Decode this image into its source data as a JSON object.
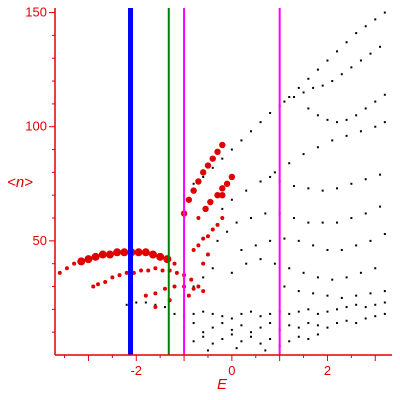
{
  "chart_data": {
    "type": "scatter",
    "title": "",
    "xlabel": "E",
    "ylabel": "<n>",
    "xlim": [
      -3.7,
      3.35
    ],
    "ylim": [
      0,
      152
    ],
    "x_ticks": [
      -2,
      0,
      2
    ],
    "x_tick_labels": [
      "-2",
      "0",
      "2"
    ],
    "y_ticks": [
      50,
      100,
      150
    ],
    "y_tick_labels": [
      "50",
      "100",
      "150"
    ],
    "grid": false,
    "legend": "none",
    "colors": {
      "axis": "#e00000",
      "highlight": "#e00000",
      "background_points": "#000000"
    },
    "vertical_lines": [
      {
        "x": -2.12,
        "color": "#0000ff",
        "weight": "thick"
      },
      {
        "x": -1.32,
        "color": "#008000",
        "weight": "thin"
      },
      {
        "x": -1.0,
        "color": "#ff00ff",
        "weight": "thin"
      },
      {
        "x": 1.0,
        "color": "#ff00ff",
        "weight": "thin"
      }
    ],
    "series": [
      {
        "color": "#000000",
        "points": [
          [
            -1.0,
            70
          ],
          [
            -0.8,
            75
          ],
          [
            -0.6,
            78
          ],
          [
            -0.4,
            82
          ],
          [
            -0.2,
            86
          ],
          [
            0.0,
            90
          ],
          [
            0.2,
            94
          ],
          [
            0.4,
            98
          ],
          [
            0.6,
            102
          ],
          [
            0.8,
            106
          ],
          [
            1.0,
            109
          ],
          [
            1.2,
            113
          ],
          [
            1.4,
            117
          ],
          [
            1.6,
            121
          ],
          [
            1.8,
            125
          ],
          [
            2.0,
            129
          ],
          [
            2.2,
            133
          ],
          [
            2.4,
            137
          ],
          [
            2.6,
            141
          ],
          [
            2.8,
            144
          ],
          [
            3.0,
            147
          ],
          [
            3.2,
            150
          ],
          [
            1.1,
            111
          ],
          [
            1.3,
            113
          ],
          [
            1.5,
            115
          ],
          [
            1.7,
            117
          ],
          [
            1.9,
            118
          ],
          [
            2.1,
            120
          ],
          [
            2.3,
            123
          ],
          [
            2.5,
            126
          ],
          [
            2.7,
            129
          ],
          [
            2.9,
            132
          ],
          [
            3.1,
            135
          ],
          [
            1.6,
            108
          ],
          [
            1.8,
            105
          ],
          [
            2.0,
            103
          ],
          [
            2.2,
            102
          ],
          [
            2.4,
            103
          ],
          [
            2.6,
            105
          ],
          [
            2.8,
            108
          ],
          [
            3.0,
            111
          ],
          [
            3.2,
            114
          ],
          [
            -0.2,
            64
          ],
          [
            0.0,
            68
          ],
          [
            0.3,
            72
          ],
          [
            0.6,
            76
          ],
          [
            0.9,
            80
          ],
          [
            1.2,
            84
          ],
          [
            1.5,
            88
          ],
          [
            1.8,
            91
          ],
          [
            2.1,
            94
          ],
          [
            2.4,
            96
          ],
          [
            2.7,
            98
          ],
          [
            3.0,
            100
          ],
          [
            3.2,
            102
          ],
          [
            0.8,
            78
          ],
          [
            1.0,
            76
          ],
          [
            1.3,
            74
          ],
          [
            1.6,
            73
          ],
          [
            1.9,
            72
          ],
          [
            2.2,
            73
          ],
          [
            2.5,
            75
          ],
          [
            2.8,
            77
          ],
          [
            3.1,
            79
          ],
          [
            0.4,
            60
          ],
          [
            0.7,
            62
          ],
          [
            1.0,
            62
          ],
          [
            1.3,
            60
          ],
          [
            1.6,
            58
          ],
          [
            1.9,
            58
          ],
          [
            2.2,
            58
          ],
          [
            2.5,
            60
          ],
          [
            2.8,
            62
          ],
          [
            3.1,
            65
          ],
          [
            0.2,
            46
          ],
          [
            0.5,
            48
          ],
          [
            0.8,
            50
          ],
          [
            1.1,
            51
          ],
          [
            1.4,
            50
          ],
          [
            1.7,
            48
          ],
          [
            2.0,
            46
          ],
          [
            2.3,
            46
          ],
          [
            2.6,
            48
          ],
          [
            2.9,
            50
          ],
          [
            3.2,
            53
          ],
          [
            -0.3,
            50
          ],
          [
            -0.1,
            54
          ],
          [
            0.1,
            58
          ],
          [
            0.0,
            36
          ],
          [
            0.3,
            40
          ],
          [
            0.6,
            42
          ],
          [
            0.9,
            40
          ],
          [
            1.2,
            38
          ],
          [
            1.5,
            36
          ],
          [
            1.8,
            34
          ],
          [
            2.1,
            33
          ],
          [
            2.4,
            34
          ],
          [
            2.7,
            36
          ],
          [
            3.0,
            38
          ],
          [
            -0.4,
            38
          ],
          [
            -0.6,
            34
          ],
          [
            -0.8,
            30
          ],
          [
            1.1,
            30
          ],
          [
            1.4,
            28
          ],
          [
            1.7,
            27
          ],
          [
            2.0,
            26
          ],
          [
            2.3,
            25
          ],
          [
            2.6,
            26
          ],
          [
            2.9,
            27
          ],
          [
            3.2,
            28
          ],
          [
            -2.2,
            22
          ],
          [
            -2.0,
            23
          ],
          [
            -1.8,
            23
          ],
          [
            -1.6,
            22
          ],
          [
            -1.4,
            21
          ],
          [
            -1.2,
            18
          ],
          [
            -1.0,
            17
          ],
          [
            -0.8,
            18
          ],
          [
            -0.6,
            19
          ],
          [
            -0.4,
            18
          ],
          [
            -0.2,
            17
          ],
          [
            0.0,
            16
          ],
          [
            0.2,
            18
          ],
          [
            0.4,
            19
          ],
          [
            0.6,
            17
          ],
          [
            0.8,
            18
          ],
          [
            1.0,
            19
          ],
          [
            1.2,
            18
          ],
          [
            1.4,
            19
          ],
          [
            1.6,
            20
          ],
          [
            1.8,
            18
          ],
          [
            2.0,
            19
          ],
          [
            2.2,
            20
          ],
          [
            2.4,
            21
          ],
          [
            2.6,
            22
          ],
          [
            2.8,
            21
          ],
          [
            3.0,
            22
          ],
          [
            3.2,
            23
          ],
          [
            -1.0,
            12
          ],
          [
            -0.8,
            14
          ],
          [
            -0.6,
            10
          ],
          [
            -0.4,
            12
          ],
          [
            -0.2,
            14
          ],
          [
            0.0,
            11
          ],
          [
            0.2,
            13
          ],
          [
            0.4,
            10
          ],
          [
            0.6,
            12
          ],
          [
            0.8,
            14
          ],
          [
            1.0,
            11
          ],
          [
            1.2,
            13
          ],
          [
            1.4,
            12
          ],
          [
            1.6,
            14
          ],
          [
            1.8,
            13
          ],
          [
            2.0,
            12
          ],
          [
            2.2,
            14
          ],
          [
            2.4,
            15
          ],
          [
            2.6,
            14
          ],
          [
            2.8,
            16
          ],
          [
            3.0,
            17
          ],
          [
            3.2,
            18
          ],
          [
            -0.8,
            6
          ],
          [
            -0.6,
            8
          ],
          [
            -0.4,
            5
          ],
          [
            -0.2,
            7
          ],
          [
            0.0,
            9
          ],
          [
            0.2,
            6
          ],
          [
            0.4,
            8
          ],
          [
            0.6,
            5
          ],
          [
            0.8,
            7
          ],
          [
            1.0,
            4
          ],
          [
            1.2,
            6
          ],
          [
            1.4,
            8
          ],
          [
            1.6,
            7
          ],
          [
            1.8,
            9
          ],
          [
            -0.5,
            2
          ],
          [
            0.1,
            3
          ],
          [
            0.7,
            2
          ]
        ]
      },
      {
        "color": "#e00000",
        "points": [
          [
            -3.6,
            36
          ],
          [
            -3.45,
            38
          ],
          [
            -3.3,
            40
          ],
          [
            -3.15,
            41
          ],
          [
            -3.0,
            42
          ],
          [
            -2.85,
            43
          ],
          [
            -2.7,
            44
          ],
          [
            -2.55,
            44
          ],
          [
            -2.4,
            45
          ],
          [
            -2.25,
            45
          ],
          [
            -2.1,
            45
          ],
          [
            -1.95,
            45
          ],
          [
            -1.8,
            45
          ],
          [
            -1.65,
            44
          ],
          [
            -1.5,
            43
          ],
          [
            -1.35,
            42
          ],
          [
            -1.2,
            40
          ],
          [
            -1.0,
            62
          ],
          [
            -0.9,
            68
          ],
          [
            -0.8,
            72
          ],
          [
            -0.7,
            76
          ],
          [
            -0.6,
            80
          ],
          [
            -0.5,
            83
          ],
          [
            -0.4,
            86
          ],
          [
            -0.3,
            89
          ],
          [
            -0.2,
            92
          ],
          [
            -2.9,
            30
          ],
          [
            -2.8,
            31
          ],
          [
            -2.65,
            32
          ],
          [
            -2.5,
            34
          ],
          [
            -2.35,
            35
          ],
          [
            -2.2,
            36
          ],
          [
            -2.05,
            36
          ],
          [
            -1.9,
            37
          ],
          [
            -1.75,
            37
          ],
          [
            -1.6,
            38
          ],
          [
            -1.45,
            37
          ],
          [
            -1.3,
            37
          ],
          [
            -1.15,
            36
          ],
          [
            -1.0,
            35
          ],
          [
            -0.85,
            33
          ],
          [
            -1.8,
            26
          ],
          [
            -1.6,
            27
          ],
          [
            -1.4,
            29
          ],
          [
            -1.2,
            30
          ],
          [
            -1.0,
            30
          ],
          [
            -0.8,
            29
          ],
          [
            -0.6,
            28
          ],
          [
            -0.7,
            60
          ],
          [
            -0.55,
            64
          ],
          [
            -0.45,
            67
          ],
          [
            -0.3,
            70
          ],
          [
            -0.2,
            73
          ],
          [
            -0.5,
            52
          ],
          [
            -0.4,
            55
          ],
          [
            -0.3,
            57
          ],
          [
            -0.2,
            60
          ],
          [
            -0.8,
            46
          ],
          [
            -0.7,
            48
          ],
          [
            -0.6,
            51
          ],
          [
            -0.5,
            44
          ],
          [
            -1.6,
            21
          ],
          [
            -1.3,
            24
          ],
          [
            -0.9,
            26
          ],
          [
            -0.7,
            30
          ],
          [
            -0.6,
            40
          ],
          [
            -0.2,
            70
          ],
          [
            -0.1,
            75
          ],
          [
            0.0,
            78
          ]
        ]
      }
    ]
  }
}
